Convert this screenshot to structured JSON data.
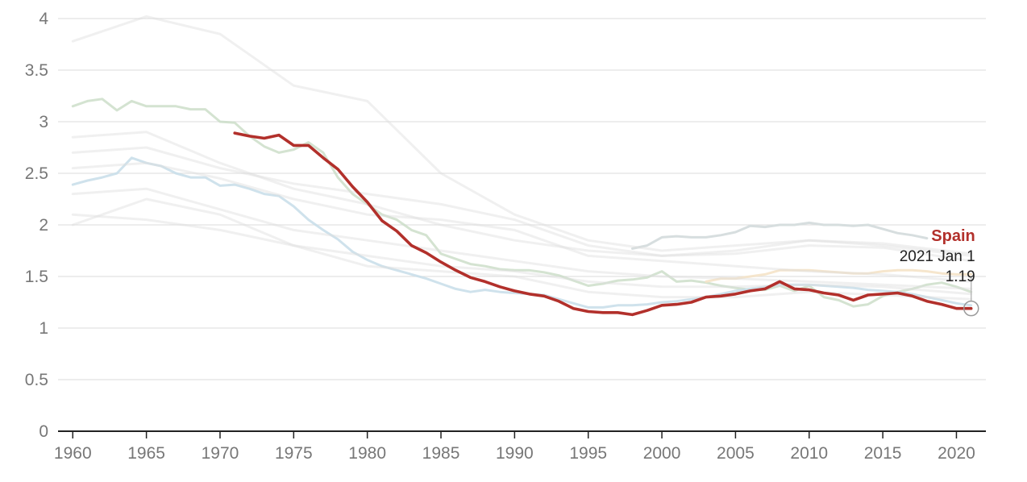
{
  "chart_data": {
    "type": "line",
    "title": "",
    "xlabel": "",
    "ylabel": "",
    "xlim": [
      1959,
      2022
    ],
    "ylim": [
      0,
      4
    ],
    "x_ticks": [
      "1960",
      "1965",
      "1970",
      "1975",
      "1980",
      "1985",
      "1990",
      "1995",
      "2000",
      "2005",
      "2010",
      "2015",
      "2020"
    ],
    "y_ticks": [
      "0",
      "0.5",
      "1",
      "1.5",
      "2",
      "2.5",
      "3",
      "3.5",
      "4"
    ],
    "grid": true,
    "highlight_color": "#b2302b",
    "series": [
      {
        "name": "Spain",
        "role": "highlight",
        "color": "#b2302b",
        "x": [
          1971,
          1972,
          1973,
          1974,
          1975,
          1976,
          1977,
          1978,
          1979,
          1980,
          1981,
          1982,
          1983,
          1984,
          1985,
          1986,
          1987,
          1988,
          1989,
          1990,
          1991,
          1992,
          1993,
          1994,
          1995,
          1996,
          1997,
          1998,
          1999,
          2000,
          2001,
          2002,
          2003,
          2004,
          2005,
          2006,
          2007,
          2008,
          2009,
          2010,
          2011,
          2012,
          2013,
          2014,
          2015,
          2016,
          2017,
          2018,
          2019,
          2020,
          2021
        ],
        "y": [
          2.89,
          2.86,
          2.84,
          2.87,
          2.77,
          2.77,
          2.65,
          2.54,
          2.37,
          2.22,
          2.04,
          1.94,
          1.8,
          1.73,
          1.64,
          1.56,
          1.49,
          1.45,
          1.4,
          1.36,
          1.33,
          1.31,
          1.26,
          1.19,
          1.16,
          1.15,
          1.15,
          1.13,
          1.17,
          1.22,
          1.23,
          1.25,
          1.3,
          1.31,
          1.33,
          1.36,
          1.38,
          1.45,
          1.38,
          1.37,
          1.34,
          1.32,
          1.27,
          1.32,
          1.33,
          1.34,
          1.31,
          1.26,
          1.23,
          1.19,
          1.19
        ]
      },
      {
        "color": "#c9dcc6",
        "opacity": 0.8,
        "x": [
          1960,
          1961,
          1962,
          1963,
          1964,
          1965,
          1966,
          1967,
          1968,
          1969,
          1970,
          1971,
          1972,
          1973,
          1974,
          1975,
          1976,
          1977,
          1978,
          1979,
          1980,
          1981,
          1982,
          1983,
          1984,
          1985,
          1986,
          1987,
          1988,
          1989,
          1990,
          1991,
          1992,
          1993,
          1994,
          1995,
          1996,
          1997,
          1998,
          1999,
          2000,
          2001,
          2002,
          2003,
          2004,
          2005,
          2006,
          2007,
          2008,
          2009,
          2010,
          2011,
          2012,
          2013,
          2014,
          2015,
          2016,
          2017,
          2018,
          2019,
          2020,
          2021
        ],
        "y": [
          3.15,
          3.2,
          3.22,
          3.11,
          3.2,
          3.15,
          3.15,
          3.15,
          3.12,
          3.12,
          3.0,
          2.99,
          2.86,
          2.76,
          2.7,
          2.73,
          2.8,
          2.7,
          2.46,
          2.3,
          2.2,
          2.1,
          2.05,
          1.95,
          1.9,
          1.72,
          1.67,
          1.62,
          1.6,
          1.57,
          1.56,
          1.56,
          1.54,
          1.51,
          1.46,
          1.41,
          1.43,
          1.46,
          1.47,
          1.49,
          1.55,
          1.45,
          1.46,
          1.44,
          1.41,
          1.39,
          1.37,
          1.37,
          1.41,
          1.36,
          1.41,
          1.3,
          1.27,
          1.21,
          1.23,
          1.31,
          1.35,
          1.38,
          1.42,
          1.44,
          1.4,
          1.35
        ]
      },
      {
        "color": "#c7dde9",
        "opacity": 0.85,
        "x": [
          1960,
          1961,
          1962,
          1963,
          1964,
          1965,
          1966,
          1967,
          1968,
          1969,
          1970,
          1971,
          1972,
          1973,
          1974,
          1975,
          1976,
          1977,
          1978,
          1979,
          1980,
          1981,
          1982,
          1983,
          1984,
          1985,
          1986,
          1987,
          1988,
          1989,
          1990,
          1991,
          1992,
          1993,
          1994,
          1995,
          1996,
          1997,
          1998,
          1999,
          2000,
          2001,
          2002,
          2003,
          2004,
          2005,
          2006,
          2007,
          2008,
          2009,
          2010,
          2011,
          2012,
          2013,
          2014,
          2015,
          2016,
          2017,
          2018,
          2019,
          2020,
          2021
        ],
        "y": [
          2.39,
          2.43,
          2.46,
          2.5,
          2.65,
          2.6,
          2.57,
          2.5,
          2.46,
          2.46,
          2.38,
          2.39,
          2.35,
          2.3,
          2.28,
          2.18,
          2.05,
          1.95,
          1.86,
          1.74,
          1.66,
          1.6,
          1.56,
          1.52,
          1.48,
          1.43,
          1.38,
          1.35,
          1.37,
          1.35,
          1.34,
          1.33,
          1.32,
          1.28,
          1.24,
          1.2,
          1.2,
          1.22,
          1.22,
          1.23,
          1.25,
          1.26,
          1.28,
          1.3,
          1.33,
          1.36,
          1.38,
          1.4,
          1.42,
          1.42,
          1.42,
          1.41,
          1.4,
          1.39,
          1.37,
          1.36,
          1.35,
          1.33,
          1.3,
          1.27,
          1.24,
          1.22
        ]
      },
      {
        "color": "#d5dcdd",
        "opacity": 0.95,
        "x": [
          1998,
          1999,
          2000,
          2001,
          2002,
          2003,
          2004,
          2005,
          2006,
          2007,
          2008,
          2009,
          2010,
          2011,
          2012,
          2013,
          2014,
          2015,
          2016,
          2017,
          2018
        ],
        "y": [
          1.77,
          1.8,
          1.88,
          1.89,
          1.88,
          1.88,
          1.9,
          1.93,
          1.99,
          1.98,
          2.0,
          2.0,
          2.02,
          2.0,
          2.0,
          1.99,
          2.0,
          1.96,
          1.92,
          1.9,
          1.87
        ]
      },
      {
        "color": "#f5e3c8",
        "opacity": 0.9,
        "x": [
          2003,
          2004,
          2005,
          2006,
          2007,
          2008,
          2009,
          2010,
          2011,
          2012,
          2013,
          2014,
          2015,
          2016,
          2017,
          2018,
          2019,
          2020,
          2021
        ],
        "y": [
          1.45,
          1.48,
          1.48,
          1.5,
          1.52,
          1.56,
          1.56,
          1.56,
          1.55,
          1.54,
          1.53,
          1.53,
          1.55,
          1.56,
          1.56,
          1.55,
          1.53,
          1.52,
          1.52
        ]
      },
      {
        "color": "#dedede",
        "opacity": 0.45,
        "x": [
          1960,
          1965,
          1970,
          1975,
          1980,
          1985,
          1990,
          1995,
          2000,
          2005,
          2010,
          2015,
          2021
        ],
        "y": [
          3.78,
          4.02,
          3.85,
          3.35,
          3.2,
          2.5,
          2.1,
          1.85,
          1.75,
          1.8,
          1.85,
          1.82,
          1.72
        ]
      },
      {
        "color": "#dedede",
        "opacity": 0.45,
        "x": [
          1960,
          1965,
          1970,
          1975,
          1980,
          1985,
          1990,
          1995,
          2000,
          2005,
          2010,
          2015,
          2021
        ],
        "y": [
          2.85,
          2.9,
          2.6,
          2.35,
          2.2,
          2.0,
          1.85,
          1.75,
          1.7,
          1.72,
          1.8,
          1.78,
          1.65
        ]
      },
      {
        "color": "#dedede",
        "opacity": 0.45,
        "x": [
          1960,
          1965,
          1970,
          1975,
          1980,
          1985,
          1990,
          1995,
          2000,
          2005,
          2010,
          2015,
          2021
        ],
        "y": [
          2.7,
          2.75,
          2.55,
          2.4,
          2.3,
          2.2,
          2.05,
          1.8,
          1.7,
          1.75,
          1.85,
          1.8,
          1.7
        ]
      },
      {
        "color": "#dedede",
        "opacity": 0.45,
        "x": [
          1960,
          1965,
          1970,
          1975,
          1980,
          1985,
          1990,
          1995,
          2000,
          2005,
          2010,
          2015,
          2021
        ],
        "y": [
          2.55,
          2.6,
          2.45,
          2.25,
          2.1,
          2.05,
          1.95,
          1.7,
          1.65,
          1.6,
          1.55,
          1.52,
          1.45
        ]
      },
      {
        "color": "#dedede",
        "opacity": 0.45,
        "x": [
          1960,
          1965,
          1970,
          1975,
          1980,
          1985,
          1990,
          1995,
          2000,
          2005,
          2010,
          2015,
          2021
        ],
        "y": [
          2.3,
          2.35,
          2.15,
          1.95,
          1.85,
          1.75,
          1.65,
          1.55,
          1.5,
          1.48,
          1.45,
          1.42,
          1.38
        ]
      },
      {
        "color": "#dedede",
        "opacity": 0.45,
        "x": [
          1960,
          1965,
          1970,
          1975,
          1980,
          1985,
          1990,
          1995,
          2000,
          2005,
          2010,
          2015,
          2021
        ],
        "y": [
          2.1,
          2.05,
          1.95,
          1.8,
          1.7,
          1.6,
          1.55,
          1.45,
          1.4,
          1.4,
          1.42,
          1.4,
          1.33
        ]
      },
      {
        "color": "#dedede",
        "opacity": 0.45,
        "x": [
          1960,
          1965,
          1970,
          1975,
          1980,
          1985,
          1990,
          1995,
          2000,
          2005,
          2010,
          2015,
          2021
        ],
        "y": [
          2.0,
          2.25,
          2.1,
          1.8,
          1.6,
          1.55,
          1.5,
          1.35,
          1.3,
          1.3,
          1.35,
          1.32,
          1.28
        ]
      }
    ],
    "annotation": {
      "series": "Spain",
      "label_name": "Spain",
      "label_date": "2021 Jan 1",
      "label_value": "1.19",
      "x": 2021,
      "y": 1.19
    }
  }
}
